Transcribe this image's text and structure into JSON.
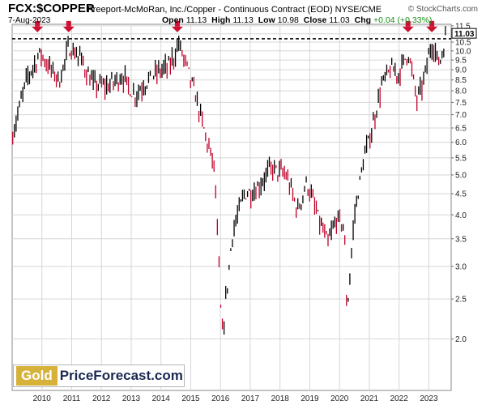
{
  "header": {
    "symbol": "FCX:$COPPER",
    "name": "Freeport-McMoRan, Inc./Copper - Continuous Contract (EOD) NYSE/CME",
    "credit": "© StockCharts.com",
    "date": "7-Aug-2023",
    "open_label": "Open",
    "open": "11.13",
    "high_label": "High",
    "high": "11.13",
    "low_label": "Low",
    "low": "10.98",
    "close_label": "Close",
    "close": "11.03",
    "chg_label": "Chg",
    "chg": "+0.04 (+0.33%)"
  },
  "logo": {
    "part1": "Gold",
    "part2": "PriceForecast.com"
  },
  "colors": {
    "up": "#000000",
    "down": "#c00028",
    "arrow": "#cc1133",
    "grid": "#d6d6d6",
    "last_badge": "#ffffff"
  },
  "chart_data": {
    "type": "ohlc",
    "y_scale": "log",
    "ylim": [
      1.5,
      11.6
    ],
    "xlim": [
      2009.0,
      2023.75
    ],
    "y_ticks": [
      2.0,
      2.5,
      3.0,
      3.5,
      4.0,
      4.5,
      5.0,
      5.5,
      6.0,
      6.5,
      7.0,
      7.5,
      8.0,
      8.5,
      9.0,
      9.5,
      10.0,
      10.5,
      11.0,
      11.5
    ],
    "y_tick_labels": [
      "2.0",
      "2.5",
      "3.0",
      "3.5",
      "4.0",
      "4.5",
      "5.0",
      "5.5",
      "6.0",
      "6.5",
      "7.0",
      "7.5",
      "8.0",
      "8.5",
      "9.0",
      "9.5",
      "10.0",
      "10.5",
      "11.0",
      "11.5"
    ],
    "x_ticks": [
      2010,
      2011,
      2012,
      2013,
      2014,
      2015,
      2016,
      2017,
      2018,
      2019,
      2020,
      2021,
      2022,
      2023
    ],
    "x_tick_labels": [
      "2010",
      "2011",
      "2012",
      "2013",
      "2014",
      "2015",
      "2016",
      "2017",
      "2018",
      "2019",
      "2020",
      "2021",
      "2022",
      "2023"
    ],
    "resistance_line": 10.7,
    "last_value": "11.03",
    "markers": [
      2009.85,
      2010.9,
      2014.55,
      2022.3,
      2023.1
    ],
    "series": [
      {
        "x": [
          2009.0,
          2009.5,
          2009.95,
          2010.3,
          2010.6,
          2010.9,
          2011.3,
          2011.7,
          2012.2,
          2012.7,
          2013.1,
          2013.5,
          2013.9,
          2014.3,
          2014.6,
          2014.9,
          2015.2,
          2015.5,
          2015.8,
          2016.05,
          2016.4,
          2016.8,
          2017.2,
          2017.7,
          2018.2,
          2018.6,
          2018.9,
          2019.3,
          2019.6,
          2019.9,
          2020.15,
          2020.25,
          2020.5,
          2020.8,
          2021.1,
          2021.4,
          2021.7,
          2022.0,
          2022.3,
          2022.6,
          2022.8,
          2023.1,
          2023.35,
          2023.6
        ],
        "values": [
          6.2,
          8.6,
          9.9,
          9.0,
          8.5,
          10.2,
          9.6,
          8.3,
          8.2,
          8.7,
          7.8,
          8.4,
          8.9,
          9.2,
          10.4,
          9.0,
          7.6,
          6.2,
          5.2,
          2.0,
          3.6,
          4.5,
          4.6,
          5.2,
          5.0,
          4.1,
          4.8,
          3.9,
          3.4,
          3.9,
          3.8,
          2.3,
          4.0,
          5.4,
          6.5,
          8.2,
          9.0,
          8.8,
          10.0,
          7.6,
          8.3,
          10.5,
          9.3,
          11.0
        ]
      }
    ]
  }
}
